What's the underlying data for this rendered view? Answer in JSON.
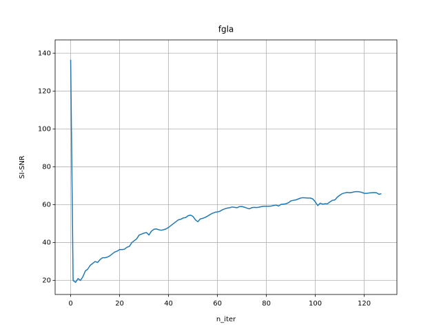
{
  "chart_data": {
    "type": "line",
    "title": "fgla",
    "x_label": "n_iter",
    "y_label": "SI-SNR",
    "x": [
      0,
      1,
      2,
      3,
      4,
      5,
      6,
      7,
      8,
      9,
      10,
      11,
      12,
      13,
      14,
      15,
      16,
      17,
      18,
      19,
      20,
      21,
      22,
      23,
      24,
      25,
      26,
      27,
      28,
      29,
      30,
      31,
      32,
      33,
      34,
      35,
      36,
      37,
      38,
      39,
      40,
      41,
      42,
      43,
      44,
      45,
      46,
      47,
      48,
      49,
      50,
      51,
      52,
      53,
      54,
      55,
      56,
      57,
      58,
      59,
      60,
      61,
      62,
      63,
      64,
      65,
      66,
      67,
      68,
      69,
      70,
      71,
      72,
      73,
      74,
      75,
      76,
      77,
      78,
      79,
      80,
      81,
      82,
      83,
      84,
      85,
      86,
      87,
      88,
      89,
      90,
      91,
      92,
      93,
      94,
      95,
      96,
      97,
      98,
      99,
      100,
      101,
      102,
      103,
      104,
      105,
      106,
      107,
      108,
      109,
      110,
      111,
      112,
      113,
      114,
      115,
      116,
      117,
      118,
      119,
      120,
      121,
      122,
      123,
      124,
      125,
      126,
      127
    ],
    "series": [
      {
        "color": "#1f77b4",
        "values": [
          136.5,
          20,
          19,
          21,
          20,
          22,
          25,
          26,
          28,
          29,
          30,
          29.5,
          31,
          32,
          32,
          32.3,
          33,
          34,
          35,
          35.5,
          36.3,
          36.3,
          36.5,
          37.5,
          38,
          40,
          41,
          42,
          44,
          44.5,
          45,
          45.3,
          44,
          46,
          47,
          47.2,
          46.8,
          46.5,
          46.8,
          47.2,
          48,
          49,
          50,
          51,
          52,
          52.3,
          53,
          53.2,
          54.2,
          54.5,
          53.8,
          52,
          51,
          52.5,
          52.8,
          53.3,
          54,
          54.8,
          55.5,
          56,
          56.2,
          56.5,
          57.3,
          57.8,
          58.2,
          58.4,
          58.8,
          58.6,
          58.4,
          59,
          59,
          58.7,
          58.2,
          57.8,
          58.4,
          58.6,
          58.5,
          58.7,
          59,
          59.2,
          59.2,
          59.2,
          59.3,
          59.6,
          59.8,
          59.3,
          60.2,
          60.3,
          60.5,
          61,
          62,
          62.3,
          62.5,
          63,
          63.5,
          63.7,
          63.6,
          63.5,
          63.5,
          63,
          61.5,
          59.5,
          60.8,
          60.3,
          60.5,
          60.5,
          61.5,
          62.3,
          62.5,
          64,
          65,
          65.8,
          66.2,
          66.5,
          66.3,
          66.5,
          66.8,
          66.9,
          66.8,
          66.5,
          66,
          66,
          66.2,
          66.3,
          66.4,
          66.3,
          65.5,
          65.8
        ]
      }
    ],
    "xlim": [
      -6.35,
      133.35
    ],
    "ylim": [
      12.6,
      147
    ],
    "xticks": [
      0,
      20,
      40,
      60,
      80,
      100,
      120
    ],
    "yticks": [
      20,
      40,
      60,
      80,
      100,
      120,
      140
    ],
    "grid": true
  }
}
